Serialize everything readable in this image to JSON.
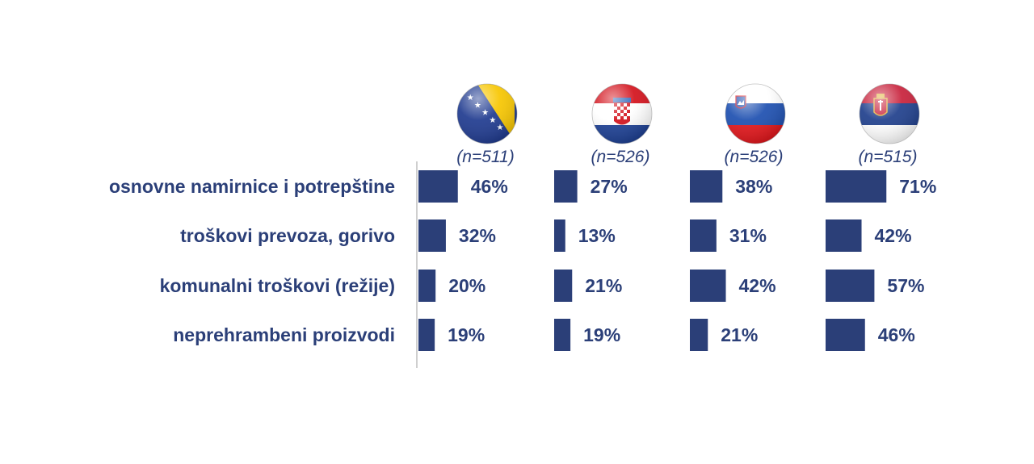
{
  "chart_data": {
    "type": "bar",
    "orientation": "horizontal",
    "categories": [
      "osnovne namirnice i potrepštine",
      "troškovi prevoza, gorivo",
      "komunalni troškovi (režije)",
      "neprehrambeni proizvodi"
    ],
    "series": [
      {
        "flag": "bosnia-herzegovina-flag-icon",
        "n_label": "(n=511)",
        "values": [
          46,
          32,
          20,
          19
        ],
        "value_labels": [
          "46%",
          "32%",
          "20%",
          "19%"
        ]
      },
      {
        "flag": "croatia-flag-icon",
        "n_label": "(n=526)",
        "values": [
          27,
          13,
          21,
          19
        ],
        "value_labels": [
          "27%",
          "13%",
          "21%",
          "19%"
        ]
      },
      {
        "flag": "slovenia-flag-icon",
        "n_label": "(n=526)",
        "values": [
          38,
          31,
          42,
          21
        ],
        "value_labels": [
          "38%",
          "31%",
          "42%",
          "21%"
        ]
      },
      {
        "flag": "serbia-flag-icon",
        "n_label": "(n=515)",
        "values": [
          71,
          42,
          57,
          46
        ],
        "value_labels": [
          "71%",
          "42%",
          "57%",
          "46%"
        ]
      }
    ],
    "unit": "%",
    "grid": false,
    "colors": {
      "bar": "#2b3f78",
      "text": "#2b3f78",
      "axis": "#bfbfbf"
    }
  }
}
